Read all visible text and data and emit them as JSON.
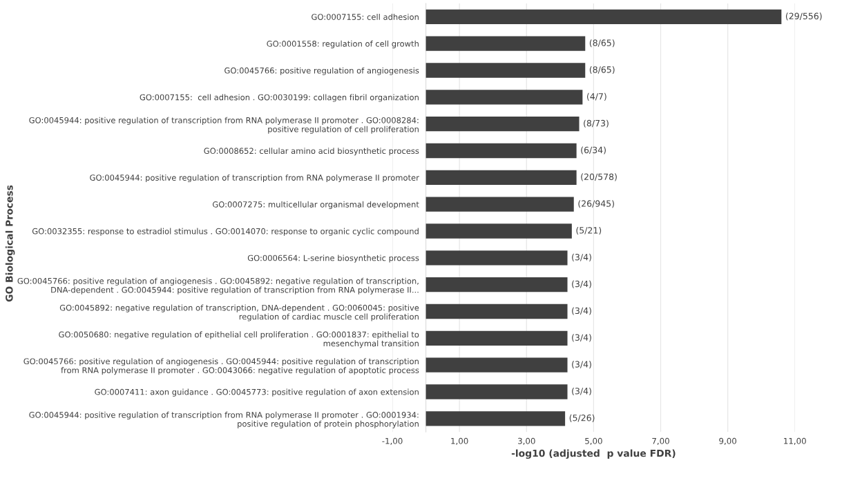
{
  "chart_data": {
    "type": "bar",
    "orientation": "horizontal",
    "xlabel": "-log10 (adjusted  p value FDR)",
    "ylabel": "GO Biological Process",
    "categories": [
      "GO:0007155: cell adhesion",
      "GO:0001558: regulation of cell growth",
      "GO:0045766: positive regulation of angiogenesis",
      "GO:0007155:  cell adhesion . GO:0030199: collagen fibril organization",
      "GO:0045944: positive regulation of transcription from RNA polymerase II promoter . GO:0008284:\npositive regulation of cell proliferation",
      "GO:0008652: cellular amino acid biosynthetic process",
      "GO:0045944: positive regulation of transcription from RNA polymerase II promoter",
      "GO:0007275: multicellular organismal development",
      "GO:0032355: response to estradiol stimulus . GO:0014070: response to organic cyclic compound",
      "GO:0006564: L-serine biosynthetic process",
      "GO:0045766: positive regulation of angiogenesis . GO:0045892: negative regulation of transcription,\nDNA-dependent . GO:0045944: positive regulation of transcription from RNA polymerase II...",
      "GO:0045892: negative regulation of transcription, DNA-dependent . GO:0060045: positive\nregulation of cardiac muscle cell proliferation",
      "GO:0050680: negative regulation of epithelial cell proliferation . GO:0001837: epithelial to\nmesenchymal transition",
      "GO:0045766: positive regulation of angiogenesis . GO:0045944: positive regulation of transcription\nfrom RNA polymerase II promoter . GO:0043066: negative regulation of apoptotic process",
      "GO:0007411: axon guidance . GO:0045773: positive regulation of axon extension",
      "GO:0045944: positive regulation of transcription from RNA polymerase II promoter . GO:0001934:\npositive regulation of protein phosphorylation"
    ],
    "values": [
      10.6,
      4.75,
      4.75,
      4.67,
      4.57,
      4.49,
      4.49,
      4.41,
      4.35,
      4.22,
      4.22,
      4.22,
      4.22,
      4.22,
      4.22,
      4.15
    ],
    "value_labels": [
      "(29/556)",
      "(8/65)",
      "(8/65)",
      "(4/7)",
      "(8/73)",
      "(6/34)",
      "(20/578)",
      "(26/945)",
      "(5/21)",
      "(3/4)",
      "(3/4)",
      "(3/4)",
      "(3/4)",
      "(3/4)",
      "(3/4)",
      "(5/26)"
    ],
    "color": "#404040",
    "xlim": [
      -1,
      11
    ],
    "xticks": [
      {
        "value": -1,
        "label": "-1,00"
      },
      {
        "value": 1,
        "label": "1,00"
      },
      {
        "value": 3,
        "label": "3,00"
      },
      {
        "value": 5,
        "label": "5,00"
      },
      {
        "value": 7,
        "label": "7,00"
      },
      {
        "value": 9,
        "label": "9,00"
      },
      {
        "value": 11,
        "label": "11,00"
      }
    ],
    "grid": "x",
    "legend": false
  }
}
